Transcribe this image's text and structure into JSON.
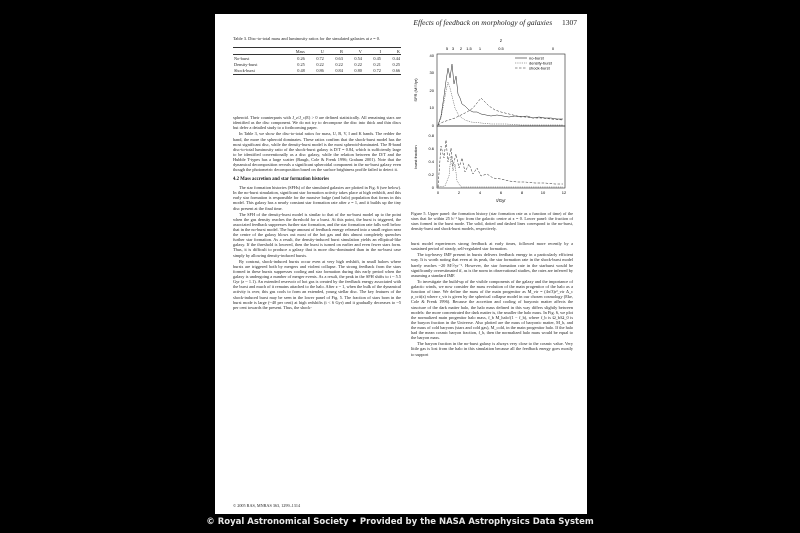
{
  "header": {
    "title": "Effects of feedback on morphology of galaxies",
    "page": "1307"
  },
  "table": {
    "caption": "Table 3. Disc-to-total mass and luminosity ratios for the simulated galaxies at z = 0.",
    "columns": [
      "",
      "Mass",
      "U",
      "B",
      "V",
      "I",
      "K"
    ],
    "rows": [
      [
        "No-burst",
        "0.26",
        "0.72",
        "0.63",
        "0.54",
        "0.45",
        "0.44"
      ],
      [
        "Density-burst",
        "0.25",
        "0.22",
        "0.22",
        "0.22",
        "0.21",
        "0.25"
      ],
      [
        "Shock-burst",
        "0.48",
        "0.86",
        "0.84",
        "0.80",
        "0.72",
        "0.66"
      ]
    ]
  },
  "left_paragraphs": [
    "spheroid. Their counterparts with J_z/J_c(E) > 0 are defined statistically. All remaining stars are identified as the disc component. We do not try to decompose the disc into thick and thin discs but defer a detailed study to a forthcoming paper.",
    "In Table 3, we show the disc-to-total ratios for mass, U, B, V, I and K bands. The redder the band, the more the spheroid dominates. These ratios confirm that the shock-burst model has the most significant disc, while the density-burst model is the most spheroid-dominated. The B-band disc-to-total luminosity ratio of the shock-burst galaxy is D/T = 0.84, which is sufficiently large to be identified conventionally as a disc galaxy, while the relation between the D/T and the Hubble T-types has a large scatter (Baugh, Cole & Frenk 1996; Graham 2001). Note that the dynamical decomposition reveals a significant spheroidal component in the no-burst galaxy even though the photometric decomposition based on the surface brightness profile failed to detect it."
  ],
  "section_title": "4.2 Mass accretion and star formation histories",
  "left_paragraphs_2": [
    "The star formation histories (SFHs) of the simulated galaxies are plotted in Fig. 6 (see below). In the no-burst simulation, significant star formation activity takes place at high redshift, and this early star formation is responsible for the massive bulge (and halo) population that forms in this model. This galaxy has a nearly constant star formation rate after z = 1, and it builds up the tiny disc present at the final time.",
    "The SFH of the density-burst model is similar to that of the no-burst model up to the point when the gas density reaches the threshold for a burst. At this point, the burst is triggered, the associated feedback suppresses further star formation, and the star formation rate falls well below that in the no-burst model. The huge amount of feedback energy released into a small region near the centre of the galaxy blows out most of the hot gas and this almost completely quenches further star formation. As a result, the density-induced burst simulation yields an elliptical-like galaxy. If the threshold is lowered, then the burst is turned on earlier and even fewer stars form. Thus, it is difficult to produce a galaxy that is more disc-dominated than in the no-burst case simply by allowing density-induced bursts.",
    "By contrast, shock-induced bursts occur even at very high redshift, in small haloes where bursts are triggered both by mergers and violent collapse. The strong feedback from the stars formed in these bursts suppresses cooling and star formation during this early period when the galaxy is undergoing a number of merger events. As a result, the peak in the SFH shifts to t ~ 5.5 Gyr (z ~ 1.1). An extended reservoir of hot gas is created by the feedback energy associated with the burst and much of it remains attached to the halo. After z ~ 1, when the bulk of the dynamical activity is over, this gas cools to form an extended, young stellar disc. The key features of the shock-induced burst may be seen in the lower panel of Fig. 5. The fraction of stars born in the burst mode is large (~40 per cent) at high redshifts (t < 6 Gyr) and it gradually decreases to ~5 per cent towards the present. Thus, the shock-"
  ],
  "footer": "© 2005 RAS, MNRAS 363, 1299–1314",
  "figure": {
    "caption": "Figure 5. Upper panel: the formation history (star formation rate as a function of time) of the stars that lie within 25 h⁻¹ kpc from the galactic centre at z = 0. Lower panel: the fraction of stars formed in the burst mode. The solid, dotted and dashed lines correspond to the no-burst, density-burst and shock-burst models, respectively.",
    "top_axis_label": "z",
    "top_ticks": [
      "5",
      "3",
      "2",
      "1.5",
      "1",
      "0.5",
      "0"
    ],
    "upper_ylabel": "SFR (M☉/yr)",
    "upper_yticks": [
      "0",
      "10",
      "20",
      "30",
      "40"
    ],
    "lower_ylabel": "burst fraction",
    "lower_yticks": [
      "0",
      "0.2",
      "0.4",
      "0.6",
      "0.8"
    ],
    "xlabel": "t/Gyr",
    "xticks": [
      "0",
      "2",
      "4",
      "6",
      "8",
      "10",
      "12"
    ],
    "legend": [
      "no-burst",
      "density-burst",
      "shock-burst"
    ]
  },
  "right_paragraphs": [
    "burst model experiences strong feedback at early times, followed more recently by a sustained period of steady, self-regulated star formation.",
    "The top-heavy IMF present in bursts delivers feedback energy in a particularly efficient way. It is worth noting that even at its peak, the star formation rate in the shock-burst model barely reaches ~20 M☉yr⁻¹. However, the star formation rate in the starburst would be significantly overestimated if, as is the norm in observational studies, the rates are inferred by assuming a standard IMF.",
    "To investigate the build-up of the visible components of the galaxy and the importance of galactic winds, we now consider the mass evolution of the main progenitor of the halo as a function of time. We define the mass of the main progenitor as M_vir = (4π/3)r³_vir Δ_c ρ_crit(z) where r_vir is given by the spherical collapse model in our chosen cosmology (Eke, Cole & Frenk 1996). Because the accretion and cooling of baryonic matter affects the structure of the dark matter halo, the halo mass defined in this way differs slightly between models: the more concentrated the dark matter is, the smaller the halo mass. In Fig. 6, we plot the normalized main progenitor halo mass, f_b M_halo/(1 − f_b), where f_b is Ω_b/Ω_0 is the baryon fraction in the Universe. Also plotted are the mass of baryonic matter, M_b, and the mass of cold baryons (stars and cold gas), M_cold, in the main progenitor halo. If the halo had the mean cosmic baryon fraction, f_b, then the normalized halo mass would be equal to the baryon mass.",
    "The baryon fraction in the no-burst galaxy is always very close to the cosmic value. Very little gas is lost from the halo in this simulation because all the feedback energy goes mostly to support"
  ],
  "credit": "© Royal Astronomical Society • Provided by the NASA Astrophysics Data System"
}
